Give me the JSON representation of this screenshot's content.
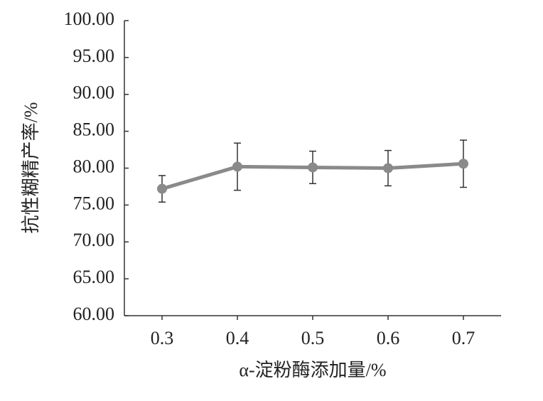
{
  "chart_data": {
    "type": "line",
    "x_label": "α-淀粉酶添加量/%",
    "y_label": "抗性糊精产率/%",
    "categories": [
      "0.3",
      "0.4",
      "0.5",
      "0.6",
      "0.7"
    ],
    "values": [
      77.2,
      80.2,
      80.1,
      80.0,
      80.6
    ],
    "errors": [
      1.8,
      3.2,
      2.2,
      2.4,
      3.2
    ],
    "color": "#8a8a8a",
    "error_color": "#333333",
    "ylim": [
      60,
      100
    ],
    "yticks": [
      {
        "value": 60,
        "label": "60.00"
      },
      {
        "value": 65,
        "label": "65.00"
      },
      {
        "value": 70,
        "label": "70.00"
      },
      {
        "value": 75,
        "label": "75.00"
      },
      {
        "value": 80,
        "label": "80.00"
      },
      {
        "value": 85,
        "label": "85.00"
      },
      {
        "value": 90,
        "label": "90.00"
      },
      {
        "value": 95,
        "label": "95.00"
      },
      {
        "value": 100,
        "label": "100.00"
      }
    ],
    "grid": false
  }
}
